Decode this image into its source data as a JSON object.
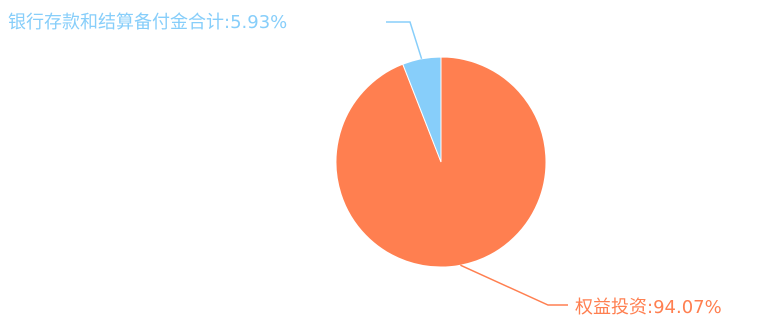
{
  "chart_data": {
    "type": "pie",
    "title": "",
    "slices": [
      {
        "label": "权益投资:94.07%",
        "name": "权益投资",
        "value": 94.07,
        "color": "#ff7f50"
      },
      {
        "label": "银行存款和结算备付金合计:5.93%",
        "name": "银行存款和结算备付金合计",
        "value": 5.93,
        "color": "#87cefa"
      }
    ],
    "legend": "none",
    "grid": false
  }
}
